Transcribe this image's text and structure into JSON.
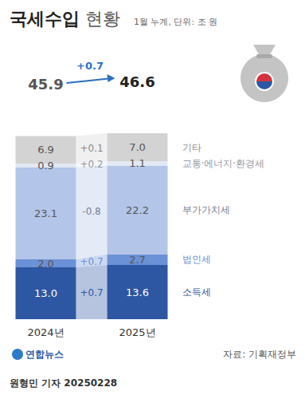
{
  "chart_data": {
    "type": "bar",
    "title": "국세수입 현황",
    "subtitle": "1월 누계, 단위: 조 원",
    "source": "자료: 기획재정부",
    "credit": "원형민 기자 20250228",
    "logo": "연합뉴스",
    "categories": [
      "2024년",
      "2025년"
    ],
    "stacked": true,
    "data_labels": true,
    "tick_labels": "x",
    "grid": false,
    "ylim": [
      0,
      47
    ],
    "yticks": [],
    "series": [
      {
        "name": "소득세",
        "color": "#2d56a3",
        "values": [
          13.0,
          13.6
        ],
        "value_labels": [
          "13.0",
          "13.6"
        ],
        "change": {
          "value": 0.7,
          "label": "+0.7"
        }
      },
      {
        "name": "법인세",
        "color": "#6b91d6",
        "values": [
          2.0,
          2.7
        ],
        "value_labels": [
          "2.0",
          "2.7"
        ],
        "change": {
          "value": 0.7,
          "label": "+0.7"
        }
      },
      {
        "name": "부가가치세",
        "color": "#b3c5e8",
        "values": [
          23.1,
          22.2
        ],
        "value_labels": [
          "23.1",
          "22.2"
        ],
        "change": {
          "value": -0.8,
          "label": "-0.8"
        }
      },
      {
        "name": "교통·에너지·환경세",
        "color": "#e3e9f4",
        "values": [
          0.9,
          1.1
        ],
        "value_labels": [
          "0.9",
          "1.1"
        ],
        "change": {
          "value": 0.2,
          "label": "+0.2"
        }
      },
      {
        "name": "기타",
        "color": "#d3d3d3",
        "values": [
          6.9,
          7.0
        ],
        "value_labels": [
          "6.9",
          "7.0"
        ],
        "change": {
          "value": 0.1,
          "label": "+0.1"
        }
      }
    ],
    "totals": [
      45.9,
      46.6
    ],
    "total_change": {
      "value": 0.7,
      "label": "+0.7"
    }
  }
}
